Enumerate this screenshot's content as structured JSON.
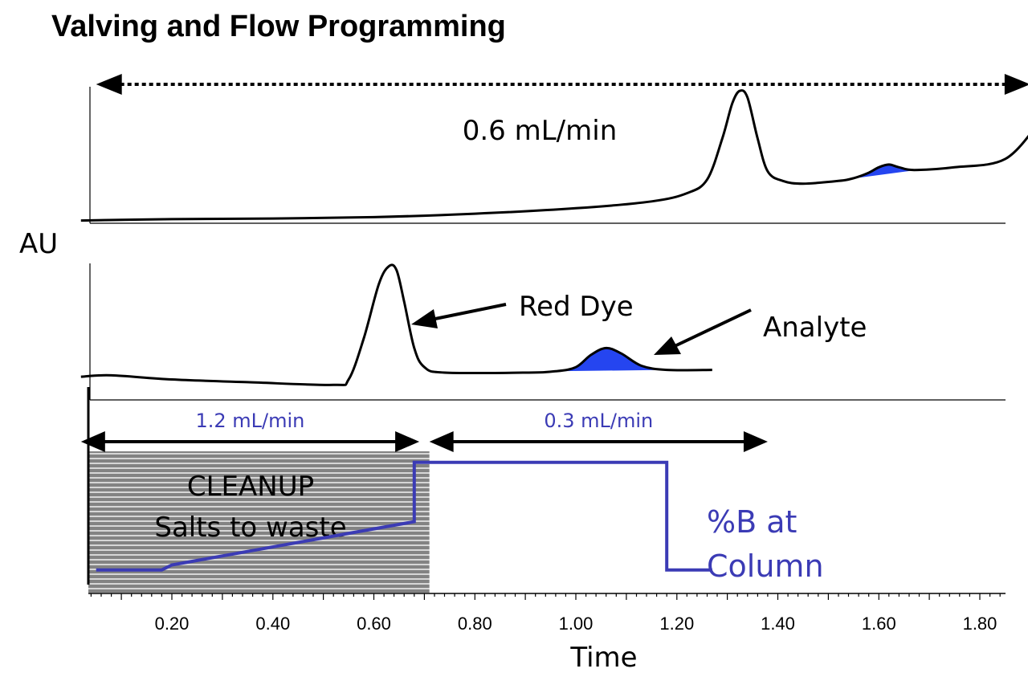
{
  "chart_data": {
    "type": "line",
    "title": "Valving and Flow Programming",
    "ylabel": "AU",
    "xlabel": "Time",
    "xlim": [
      0.02,
      1.92
    ],
    "x_ticks": [
      "0.20",
      "0.40",
      "0.60",
      "0.80",
      "1.00",
      "1.20",
      "1.40",
      "1.60",
      "1.80"
    ],
    "x_tick_values": [
      0.2,
      0.4,
      0.6,
      0.8,
      1.0,
      1.2,
      1.4,
      1.6,
      1.8
    ],
    "upper_panel": {
      "flow_label": "0.6 mL/min",
      "flow_range": [
        0.05,
        1.9
      ],
      "trace": [
        [
          0.02,
          0.02
        ],
        [
          0.2,
          0.03
        ],
        [
          0.4,
          0.035
        ],
        [
          0.6,
          0.045
        ],
        [
          0.8,
          0.07
        ],
        [
          1.0,
          0.11
        ],
        [
          1.15,
          0.16
        ],
        [
          1.22,
          0.22
        ],
        [
          1.26,
          0.32
        ],
        [
          1.29,
          0.62
        ],
        [
          1.31,
          0.88
        ],
        [
          1.325,
          0.97
        ],
        [
          1.34,
          0.92
        ],
        [
          1.36,
          0.62
        ],
        [
          1.38,
          0.38
        ],
        [
          1.41,
          0.31
        ],
        [
          1.45,
          0.29
        ],
        [
          1.52,
          0.31
        ],
        [
          1.55,
          0.33
        ],
        [
          1.58,
          0.37
        ],
        [
          1.6,
          0.41
        ],
        [
          1.62,
          0.43
        ],
        [
          1.64,
          0.41
        ],
        [
          1.67,
          0.39
        ],
        [
          1.75,
          0.41
        ],
        [
          1.85,
          0.47
        ],
        [
          1.92,
          0.75
        ]
      ],
      "analyte_shade": [
        1.54,
        1.68
      ]
    },
    "lower_panel": {
      "trace": [
        [
          0.02,
          0.17
        ],
        [
          0.08,
          0.18
        ],
        [
          0.2,
          0.15
        ],
        [
          0.35,
          0.13
        ],
        [
          0.52,
          0.11
        ],
        [
          0.55,
          0.15
        ],
        [
          0.58,
          0.45
        ],
        [
          0.61,
          0.85
        ],
        [
          0.63,
          0.98
        ],
        [
          0.645,
          0.95
        ],
        [
          0.66,
          0.72
        ],
        [
          0.68,
          0.38
        ],
        [
          0.7,
          0.24
        ],
        [
          0.74,
          0.2
        ],
        [
          0.9,
          0.2
        ],
        [
          0.96,
          0.21
        ],
        [
          1.0,
          0.24
        ],
        [
          1.03,
          0.33
        ],
        [
          1.06,
          0.38
        ],
        [
          1.09,
          0.34
        ],
        [
          1.13,
          0.25
        ],
        [
          1.18,
          0.22
        ],
        [
          1.27,
          0.22
        ]
      ],
      "analyte_shade": [
        0.96,
        1.18
      ],
      "annotations": [
        "Red Dye",
        "Analyte"
      ]
    },
    "gradient_panel": {
      "series": [
        {
          "name": "%B at Column",
          "color": "#3b3bb5",
          "points": [
            [
              0.05,
              0.08
            ],
            [
              0.18,
              0.08
            ],
            [
              0.2,
              0.12
            ],
            [
              0.68,
              0.47
            ],
            [
              0.68,
              0.95
            ],
            [
              1.18,
              0.95
            ],
            [
              1.18,
              0.08
            ],
            [
              1.27,
              0.08
            ]
          ]
        }
      ],
      "series_label": [
        "%B at",
        "Column"
      ],
      "cleanup_region": [
        0.02,
        0.71
      ],
      "cleanup_text": [
        "CLEANUP",
        "Salts to waste"
      ],
      "flow_segments": [
        {
          "label": "1.2 mL/min",
          "range": [
            0.02,
            0.69
          ]
        },
        {
          "label": "0.3 mL/min",
          "range": [
            0.71,
            1.38
          ]
        }
      ]
    }
  }
}
